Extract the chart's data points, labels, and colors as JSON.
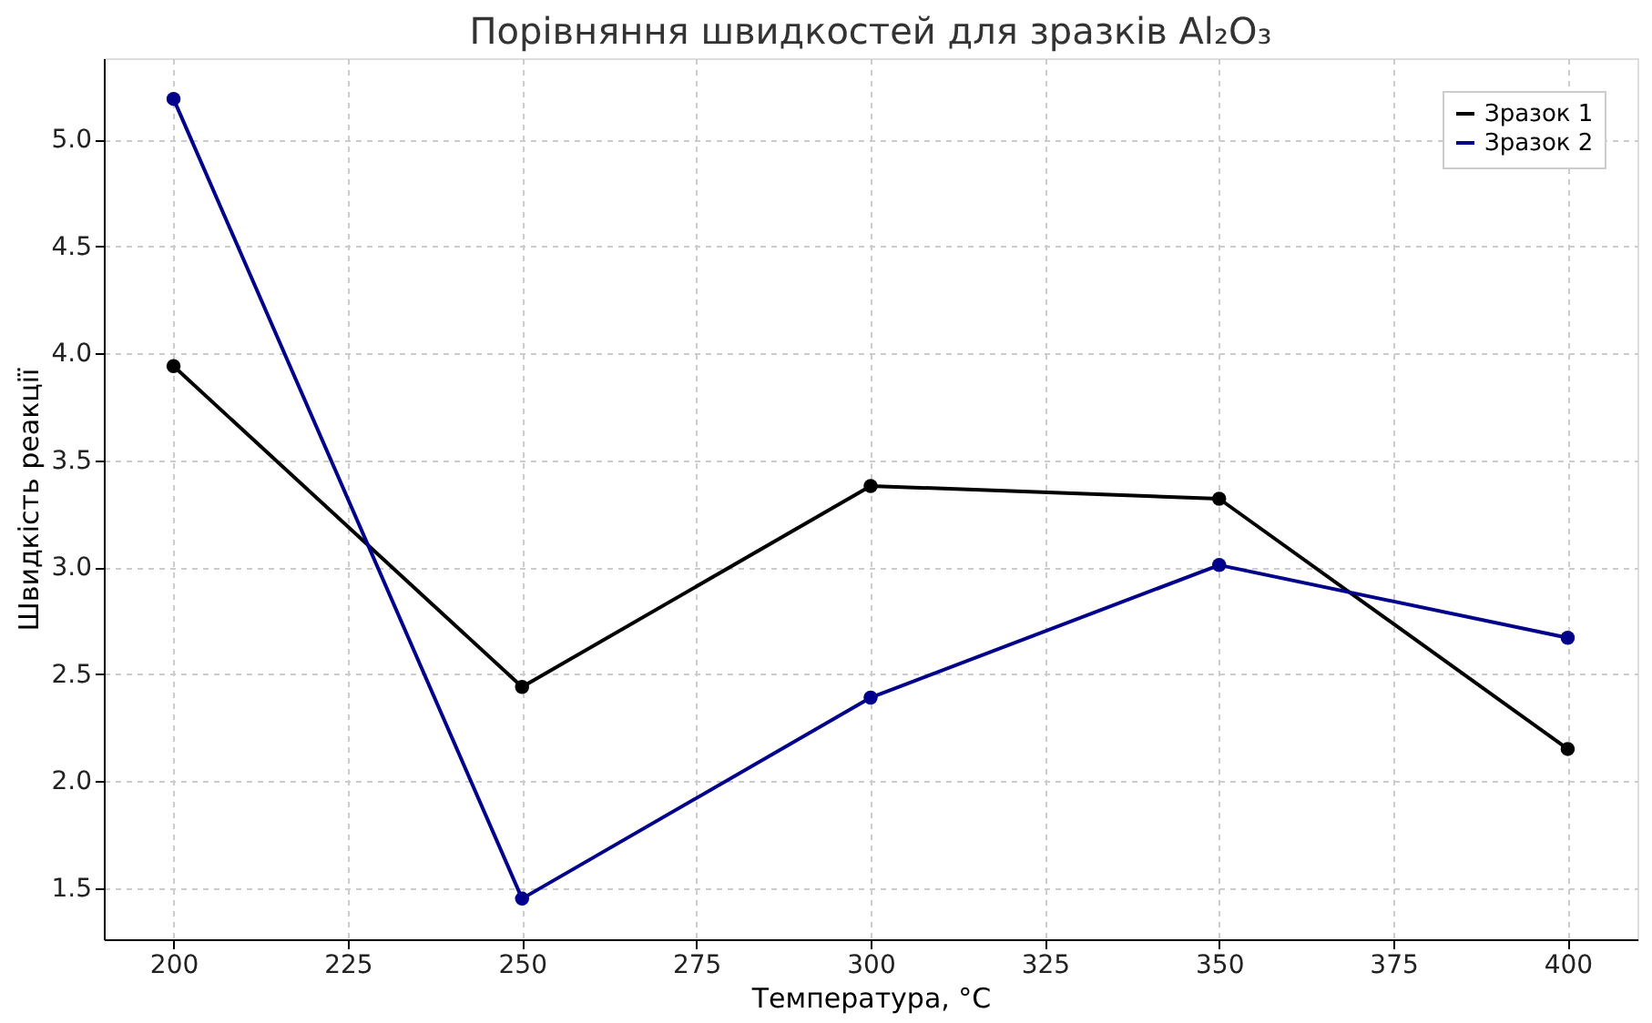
{
  "chart_data": {
    "type": "line",
    "title": "Порівняння швидкостей для зразків Al₂O₃",
    "xlabel": "Температура, °C",
    "ylabel": "Швидкість реакції",
    "x": [
      200,
      250,
      300,
      350,
      400
    ],
    "series": [
      {
        "name": "Зразок 1",
        "color": "#000000",
        "values": [
          3.94,
          2.44,
          3.38,
          3.32,
          2.15
        ]
      },
      {
        "name": "Зразок 2",
        "color": "#00008b",
        "values": [
          5.19,
          1.45,
          2.39,
          3.01,
          2.67
        ]
      }
    ],
    "xlim": [
      190,
      410
    ],
    "xticks": [
      200,
      225,
      250,
      275,
      300,
      325,
      350,
      375,
      400
    ],
    "ylim": [
      1.26,
      5.38
    ],
    "yticks": [
      1.5,
      {
        "value": 2,
        "label": "2.0"
      },
      2.5,
      {
        "value": 3,
        "label": "3.0"
      },
      3.5,
      {
        "value": 4,
        "label": "4.0"
      },
      4.5,
      {
        "value": 5,
        "label": "5.0"
      }
    ],
    "grid": true,
    "legend": "top right",
    "marker": "circle",
    "line_style": "solid"
  }
}
